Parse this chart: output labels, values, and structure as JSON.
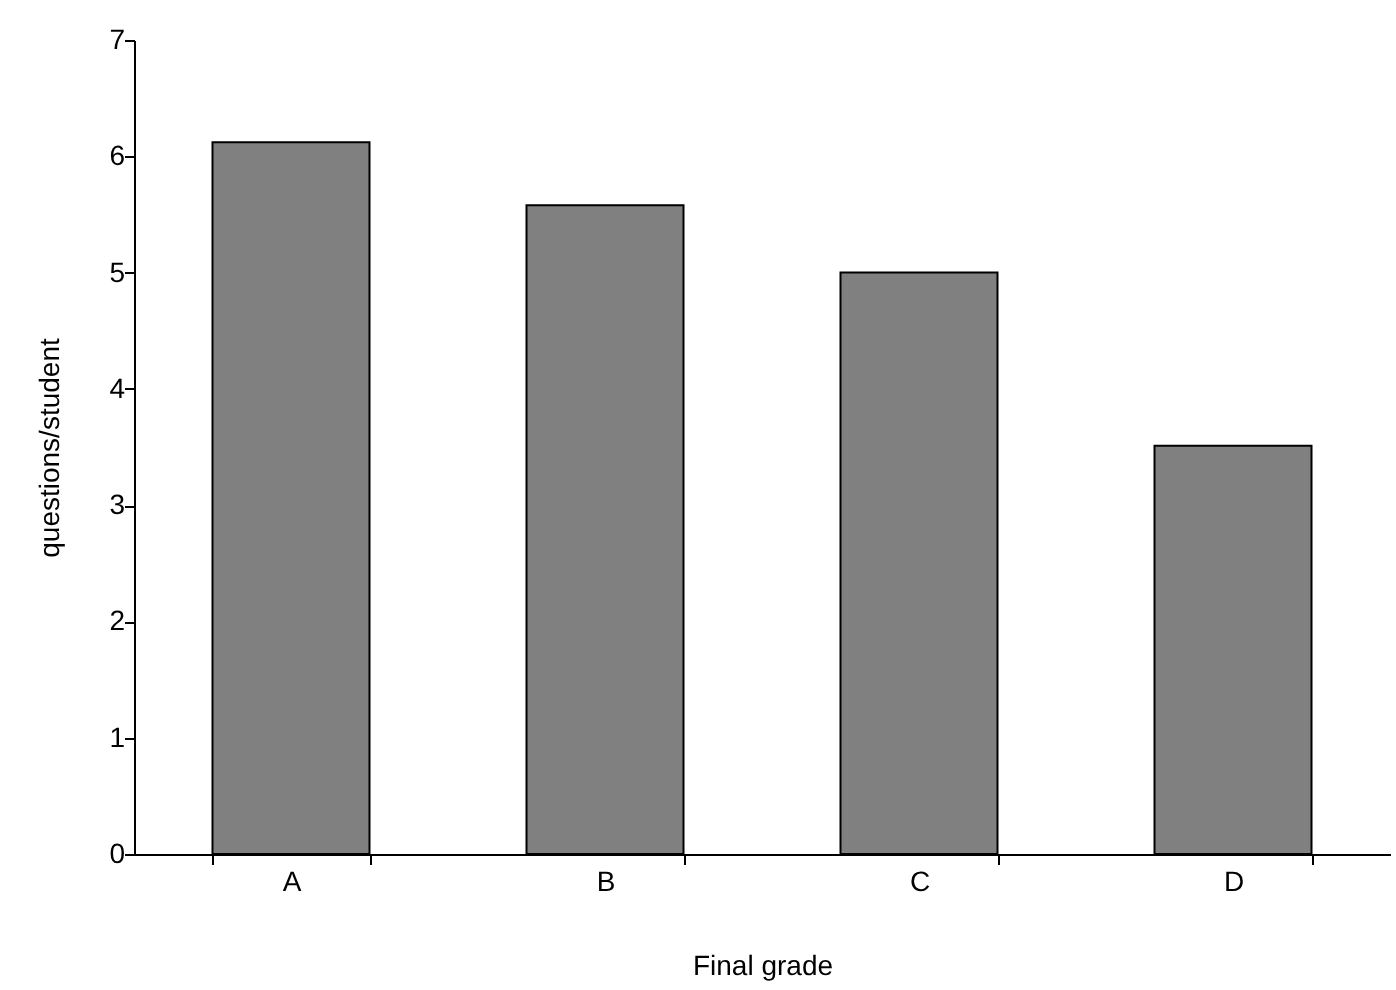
{
  "chart_data": {
    "type": "bar",
    "xlabel": "Final grade",
    "ylabel": "questions/student",
    "categories": [
      "A",
      "B",
      "C",
      "D"
    ],
    "values": [
      6.12,
      5.58,
      5.0,
      3.51
    ],
    "color": "#808080",
    "ylim": [
      0,
      7
    ],
    "yticks": [
      0,
      1,
      2,
      3,
      4,
      5,
      6,
      7
    ],
    "grid": false
  }
}
